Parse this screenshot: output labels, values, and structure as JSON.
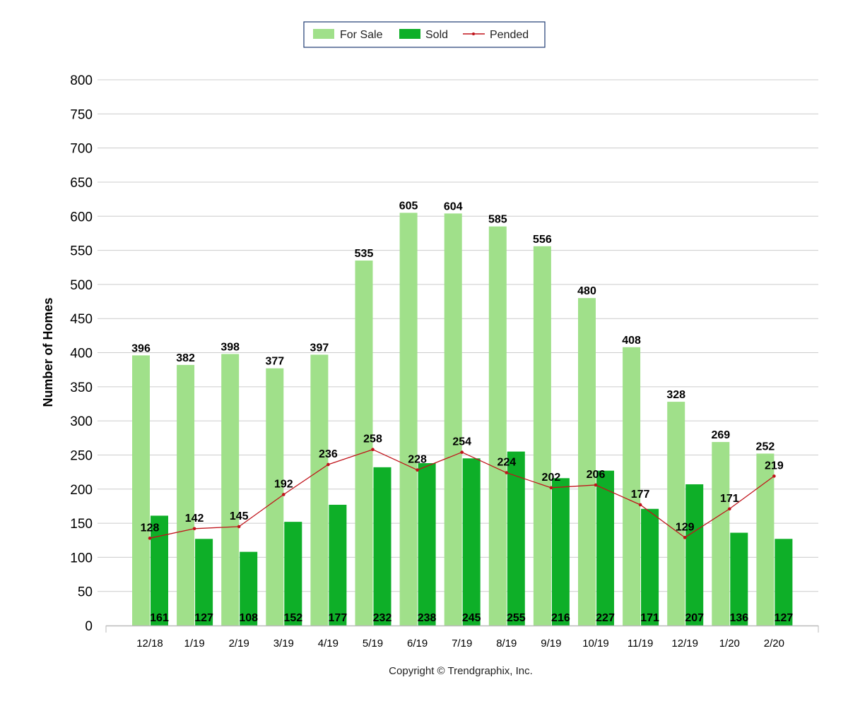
{
  "chart_data": {
    "type": "bar",
    "title": "",
    "xlabel": "",
    "ylabel": "Number of Homes",
    "ylim": [
      0,
      800
    ],
    "ytick_step": 50,
    "grid": true,
    "legend_position": "top-center",
    "categories": [
      "12/18",
      "1/19",
      "2/19",
      "3/19",
      "4/19",
      "5/19",
      "6/19",
      "7/19",
      "8/19",
      "9/19",
      "10/19",
      "11/19",
      "12/19",
      "1/20",
      "2/20"
    ],
    "series": [
      {
        "name": "For Sale",
        "kind": "bar",
        "color": "#a0e08a",
        "values": [
          396,
          382,
          398,
          377,
          397,
          535,
          605,
          604,
          585,
          556,
          480,
          408,
          328,
          269,
          252
        ]
      },
      {
        "name": "Sold",
        "kind": "bar",
        "color": "#0eaf28",
        "values": [
          161,
          127,
          108,
          152,
          177,
          232,
          238,
          245,
          255,
          216,
          227,
          171,
          207,
          136,
          127
        ]
      },
      {
        "name": "Pended",
        "kind": "line",
        "color": "#c0141b",
        "values": [
          128,
          142,
          145,
          192,
          236,
          258,
          228,
          254,
          224,
          202,
          206,
          177,
          129,
          171,
          219
        ]
      }
    ],
    "footer": "Copyright © Trendgraphix, Inc."
  }
}
